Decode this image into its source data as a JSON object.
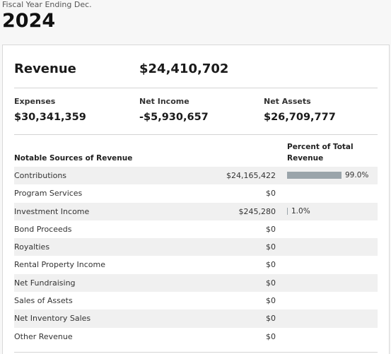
{
  "header": {
    "fiscal_label": "Fiscal Year Ending Dec.",
    "year": "2024"
  },
  "summary": {
    "revenue_label": "Revenue",
    "revenue_value": "$24,410,702",
    "expenses_label": "Expenses",
    "expenses_value": "$30,341,359",
    "net_income_label": "Net Income",
    "net_income_value": "-$5,930,657",
    "net_assets_label": "Net Assets",
    "net_assets_value": "$26,709,777"
  },
  "sources": {
    "heading": "Notable Sources of Revenue",
    "pct_heading": "Percent of Total Revenue",
    "rows": [
      {
        "name": "Contributions",
        "amount": "$24,165,422",
        "pct": "99.0%",
        "pct_value": 99.0
      },
      {
        "name": "Program Services",
        "amount": "$0",
        "pct": "",
        "pct_value": 0
      },
      {
        "name": "Investment Income",
        "amount": "$245,280",
        "pct": "1.0%",
        "pct_value": 1.0
      },
      {
        "name": "Bond Proceeds",
        "amount": "$0",
        "pct": "",
        "pct_value": 0
      },
      {
        "name": "Royalties",
        "amount": "$0",
        "pct": "",
        "pct_value": 0
      },
      {
        "name": "Rental Property Income",
        "amount": "$0",
        "pct": "",
        "pct_value": 0
      },
      {
        "name": "Net Fundraising",
        "amount": "$0",
        "pct": "",
        "pct_value": 0
      },
      {
        "name": "Sales of Assets",
        "amount": "$0",
        "pct": "",
        "pct_value": 0
      },
      {
        "name": "Net Inventory Sales",
        "amount": "$0",
        "pct": "",
        "pct_value": 0
      },
      {
        "name": "Other Revenue",
        "amount": "$0",
        "pct": "",
        "pct_value": 0
      }
    ]
  },
  "colors": {
    "bar": "#9aa4aa",
    "row_shade": "#f0f0f0"
  }
}
